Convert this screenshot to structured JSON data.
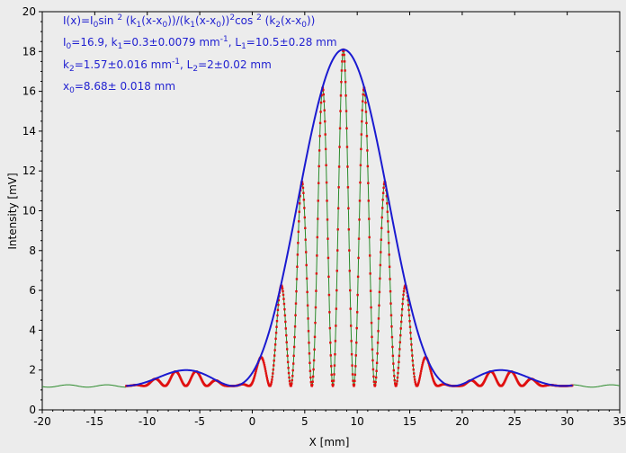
{
  "chart_data": {
    "type": "scatter",
    "xlabel": "X [mm]",
    "ylabel": "Intensity [mV]",
    "xlim": [
      -20,
      35
    ],
    "ylim": [
      0,
      20
    ],
    "x_ticks": [
      -20,
      -15,
      -10,
      -5,
      0,
      5,
      10,
      15,
      20,
      25,
      30,
      35
    ],
    "y_ticks": [
      0,
      2,
      4,
      6,
      8,
      10,
      12,
      14,
      16,
      18,
      20
    ],
    "grid": false,
    "background_color": "#ececec",
    "series": [
      {
        "kind": "fit-envelope",
        "color": "#1a1ad0",
        "x_range": [
          -12,
          30.5
        ],
        "model": {
          "I0": 16.9,
          "k1": 0.3,
          "k2": 1.57,
          "x0": 8.68,
          "offset": 1.2
        }
      },
      {
        "kind": "measured-points",
        "color": "#e01010",
        "x_range": [
          -12,
          30.5
        ]
      },
      {
        "kind": "background-trace",
        "color": "#2a8a2a",
        "x_range": [
          -20,
          35
        ]
      }
    ],
    "annotations": [
      {
        "line": 1,
        "segments": [
          [
            "I(x)=I",
            ""
          ],
          [
            "0",
            "sub"
          ],
          [
            "sin ",
            ""
          ],
          [
            "2",
            "sup"
          ],
          [
            " (k",
            ""
          ],
          [
            "1",
            "sub"
          ],
          [
            "(x-x",
            ""
          ],
          [
            "0",
            "sub"
          ],
          "))/(k",
          [
            "1",
            "sub"
          ],
          [
            "(x-x",
            ""
          ],
          [
            "0",
            "sub"
          ],
          [
            "))",
            ""
          ],
          [
            "2",
            "sup"
          ],
          [
            "cos ",
            ""
          ],
          [
            "2",
            "sup"
          ],
          [
            " (k",
            ""
          ],
          [
            "2",
            "sub"
          ],
          [
            "(x-x",
            ""
          ],
          [
            "0",
            "sub"
          ],
          [
            "))",
            ""
          ]
        ]
      },
      {
        "line": 2,
        "segments": [
          [
            "I",
            ""
          ],
          [
            "0",
            "sub"
          ],
          [
            "=16.9,  k",
            ""
          ],
          [
            "1",
            "sub"
          ],
          [
            "=0.3±0.0079 mm",
            ""
          ],
          [
            "-1",
            "sup"
          ],
          [
            ",   L",
            ""
          ],
          [
            "1",
            "sub"
          ],
          [
            "=10.5±0.28 mm",
            ""
          ]
        ]
      },
      {
        "line": 3,
        "segments": [
          [
            "k",
            ""
          ],
          [
            "2",
            "sub"
          ],
          [
            "=1.57±0.016 mm",
            ""
          ],
          [
            "-1",
            "sup"
          ],
          [
            ",   L",
            ""
          ],
          [
            "2",
            "sub"
          ],
          [
            "=2±0.02 mm",
            ""
          ]
        ]
      },
      {
        "line": 4,
        "segments": [
          [
            "x",
            ""
          ],
          [
            "0",
            "sub"
          ],
          [
            "=8.68±  0.018 mm",
            ""
          ]
        ]
      }
    ]
  }
}
